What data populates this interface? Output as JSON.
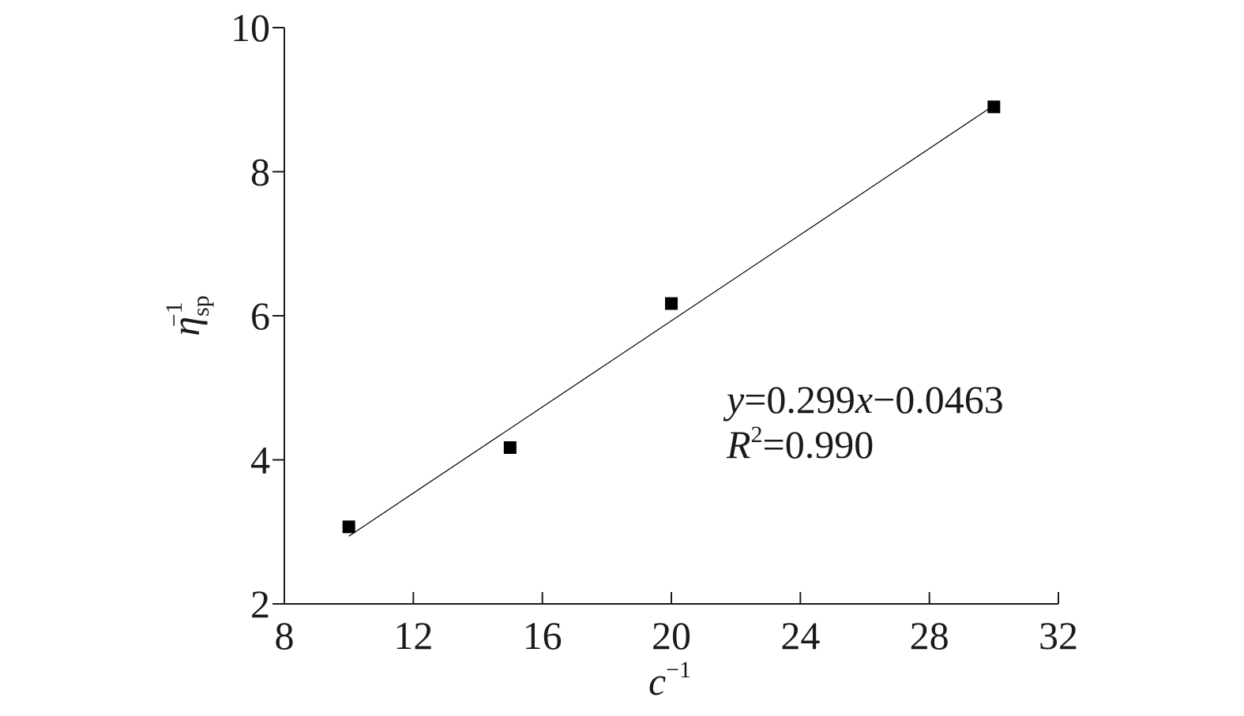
{
  "chart_data": {
    "type": "scatter",
    "x": [
      10,
      15,
      20,
      30
    ],
    "values": [
      3.07,
      4.17,
      6.17,
      8.9
    ],
    "color": "#000000",
    "marker": "square",
    "fit_line": {
      "x": [
        10,
        30
      ],
      "values": [
        2.94,
        8.92
      ],
      "color": "#000000"
    },
    "x_label": {
      "base": "c",
      "superscript": "−1"
    },
    "y_label": {
      "base": "η",
      "subscript": "sp",
      "superscript": "−1"
    },
    "annotation": [
      [
        {
          "text": "y",
          "italic": true
        },
        {
          "text": "=0.299",
          "italic": false
        },
        {
          "text": "x",
          "italic": true
        },
        {
          "text": "−0.0463",
          "italic": false
        }
      ],
      [
        {
          "text": "R",
          "italic": true
        },
        {
          "text": "2",
          "italic": false,
          "superscript": true
        },
        {
          "text": "=0.990",
          "italic": false
        }
      ]
    ],
    "xlim": [
      8,
      32
    ],
    "xticks": [
      8,
      12,
      16,
      20,
      24,
      28,
      32
    ],
    "ylim": [
      2,
      10
    ],
    "yticks": [
      2,
      4,
      6,
      8,
      10
    ],
    "grid": false
  }
}
